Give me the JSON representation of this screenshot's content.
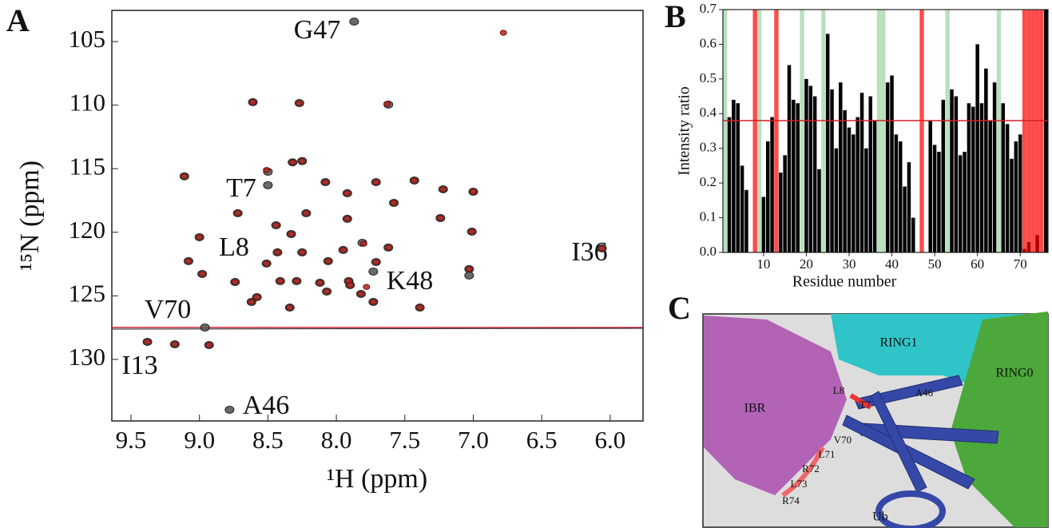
{
  "panel_labels": [
    "A",
    "B",
    "C"
  ],
  "chart_data": [
    {
      "type": "scatter",
      "x_label": "¹H (ppm)",
      "y_label": "¹⁵N (ppm)",
      "xlim": [
        9.64,
        5.76
      ],
      "ylim": [
        134.84,
        102.55
      ],
      "xticks": [
        9.5,
        {
          "value": 9,
          "label": "9.0"
        },
        8.5,
        {
          "value": 8,
          "label": "8.0"
        },
        7.5,
        {
          "value": 7,
          "label": "7.0"
        },
        6.5,
        {
          "value": 6,
          "label": "6.0"
        }
      ],
      "yticks": [
        105,
        110,
        115,
        120,
        125,
        130
      ],
      "annotations": [
        "G47",
        "T7",
        "L8",
        "K48",
        "I36",
        "V70",
        "I13",
        "A46"
      ],
      "series": [
        {
          "color": "#5a5a5a",
          "x": [
            7.87,
            8.27,
            8.61,
            7.62,
            9.11,
            8.5,
            8.32,
            8.25,
            8.5,
            8.08,
            7.71,
            7.43,
            7.22,
            7.0,
            7.92,
            8.72,
            8.22,
            7.58,
            7.92,
            7.24,
            7.01,
            8.44,
            8.33,
            9.0,
            7.95,
            7.81,
            8.43,
            8.25,
            7.62,
            9.08,
            8.98,
            8.74,
            8.51,
            8.06,
            7.71,
            7.03,
            7.03,
            8.12,
            8.07,
            7.73,
            7.91,
            7.9,
            7.82,
            7.73,
            7.39,
            8.62,
            8.58,
            8.41,
            8.29,
            8.34,
            8.96,
            9.38,
            9.18,
            8.93,
            8.78,
            6.06
          ],
          "y": [
            103.43,
            109.84,
            109.77,
            109.96,
            115.6,
            115.24,
            114.5,
            114.4,
            116.3,
            116.06,
            116.06,
            115.93,
            116.62,
            116.81,
            116.93,
            118.5,
            118.5,
            117.69,
            118.94,
            118.88,
            119.95,
            119.45,
            120.14,
            120.39,
            121.39,
            120.83,
            121.58,
            121.58,
            121.2,
            122.27,
            123.28,
            123.91,
            122.46,
            122.27,
            122.34,
            122.9,
            123.4,
            123.97,
            124.66,
            123.09,
            123.84,
            124.16,
            124.85,
            125.48,
            125.92,
            125.48,
            125.1,
            123.84,
            123.84,
            125.92,
            127.49,
            128.62,
            128.81,
            128.87,
            133.96,
            121.27
          ]
        },
        {
          "color": "#b3261e",
          "x": [
            6.78,
            8.27,
            8.61,
            7.63,
            9.11,
            8.51,
            8.32,
            8.25,
            8.08,
            7.71,
            7.43,
            7.22,
            7.0,
            7.92,
            8.72,
            8.22,
            7.58,
            7.92,
            7.24,
            7.01,
            8.44,
            8.33,
            9.0,
            7.95,
            7.8,
            8.43,
            8.25,
            7.62,
            9.08,
            8.98,
            8.74,
            8.51,
            8.06,
            7.71,
            7.03,
            8.12,
            8.07,
            7.78,
            7.91,
            7.9,
            7.82,
            7.73,
            7.39,
            8.62,
            8.58,
            8.41,
            8.29,
            8.34,
            9.38,
            9.18,
            8.93,
            6.06
          ],
          "y": [
            104.31,
            109.84,
            109.77,
            109.9,
            115.6,
            115.1,
            114.5,
            114.4,
            116.06,
            116.06,
            115.93,
            116.62,
            116.81,
            116.93,
            118.5,
            118.5,
            117.69,
            118.94,
            118.88,
            119.95,
            119.45,
            120.14,
            120.39,
            121.39,
            120.9,
            121.58,
            121.58,
            121.2,
            122.27,
            123.28,
            123.91,
            122.46,
            122.27,
            122.34,
            122.9,
            123.97,
            124.66,
            124.3,
            123.84,
            124.16,
            124.85,
            125.48,
            125.92,
            125.48,
            125.1,
            123.84,
            123.84,
            125.92,
            128.62,
            128.81,
            128.87,
            121.27
          ]
        }
      ]
    },
    {
      "type": "bar",
      "x_label": "Residue number",
      "y_label": "Intensity ratio",
      "xlim": [
        0.5,
        76.5
      ],
      "ylim": [
        0,
        0.7
      ],
      "xticks": [
        10,
        20,
        30,
        40,
        50,
        60,
        70
      ],
      "yticks": [
        {
          "value": 0,
          "label": "0.0"
        },
        0.1,
        0.2,
        0.3,
        0.4,
        0.5,
        0.6,
        0.7
      ],
      "color": "#000000",
      "highlight_color": "#b00000",
      "threshold": 0.38,
      "threshold_color": "#d62020",
      "red_bands": [
        8,
        13,
        47,
        71,
        72,
        73,
        74,
        75
      ],
      "red_band_color": "#ff4a4a",
      "green_bands": [
        1,
        9,
        19,
        24,
        37,
        38,
        53,
        65
      ],
      "green_band_color": "#b9e0bd",
      "categories": [
        1,
        2,
        3,
        4,
        5,
        6,
        7,
        8,
        9,
        10,
        11,
        12,
        13,
        14,
        15,
        16,
        17,
        18,
        19,
        20,
        21,
        22,
        23,
        24,
        25,
        26,
        27,
        28,
        29,
        30,
        31,
        32,
        33,
        34,
        35,
        36,
        37,
        38,
        39,
        40,
        41,
        42,
        43,
        44,
        45,
        46,
        47,
        48,
        49,
        50,
        51,
        52,
        53,
        54,
        55,
        56,
        57,
        58,
        59,
        60,
        61,
        62,
        63,
        64,
        65,
        66,
        67,
        68,
        69,
        70,
        71,
        72,
        73,
        74,
        75,
        76
      ],
      "values": [
        null,
        0.39,
        0.44,
        0.43,
        0.25,
        0.18,
        null,
        null,
        null,
        0.16,
        0.32,
        0.39,
        null,
        0.23,
        0.28,
        0.54,
        0.44,
        0.43,
        null,
        0.5,
        0.48,
        0.45,
        0.24,
        null,
        0.63,
        0.47,
        0.3,
        0.49,
        0.41,
        0.36,
        0.34,
        0.39,
        0.46,
        0.3,
        0.45,
        0.38,
        null,
        null,
        0.49,
        0.51,
        0.34,
        0.32,
        0.19,
        0.26,
        0.1,
        null,
        null,
        null,
        0.38,
        0.31,
        0.29,
        0.44,
        null,
        0.47,
        0.45,
        0.28,
        0.29,
        0.43,
        0.42,
        0.6,
        0.43,
        0.53,
        0.38,
        0.49,
        null,
        0.43,
        0.37,
        0.27,
        0.32,
        0.34,
        0.01,
        0.03,
        null,
        0.05,
        null,
        0.7
      ]
    }
  ],
  "structure": {
    "labels": [
      "RING1",
      "RING0",
      "IBR",
      "L8",
      "T7",
      "A46",
      "V70",
      "L71",
      "R72",
      "L73",
      "R74",
      "Ub"
    ]
  }
}
